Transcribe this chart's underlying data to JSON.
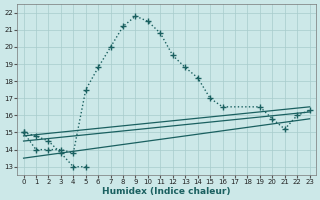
{
  "xlabel": "Humidex (Indice chaleur)",
  "bg_color": "#cce8e8",
  "line_color": "#1a6060",
  "grid_color": "#a8cccc",
  "xlim": [
    -0.5,
    23.5
  ],
  "ylim": [
    12.5,
    22.5
  ],
  "yticks": [
    13,
    14,
    15,
    16,
    17,
    18,
    19,
    20,
    21,
    22
  ],
  "xticks": [
    0,
    1,
    2,
    3,
    4,
    5,
    6,
    7,
    8,
    9,
    10,
    11,
    12,
    13,
    14,
    15,
    16,
    17,
    18,
    19,
    20,
    21,
    22,
    23
  ],
  "main_curve_x": [
    0,
    1,
    2,
    3,
    4,
    5,
    6,
    7,
    8,
    9,
    10,
    11,
    12,
    13,
    14,
    15,
    16,
    19,
    20,
    21,
    22,
    23
  ],
  "main_curve_y": [
    15.0,
    14.0,
    14.0,
    14.0,
    13.8,
    17.5,
    18.8,
    20.0,
    21.2,
    21.8,
    21.5,
    20.8,
    19.5,
    18.8,
    18.2,
    17.0,
    16.5,
    16.5,
    15.8,
    15.2,
    16.0,
    16.3
  ],
  "lower_curve_x": [
    0,
    1,
    2,
    3,
    4,
    5
  ],
  "lower_curve_y": [
    15.0,
    14.8,
    14.5,
    13.8,
    13.0,
    13.0
  ],
  "line1_x": [
    0,
    23
  ],
  "line1_y": [
    14.8,
    16.5
  ],
  "line2_x": [
    0,
    23
  ],
  "line2_y": [
    14.5,
    16.2
  ],
  "line3_x": [
    0,
    23
  ],
  "line3_y": [
    13.5,
    15.8
  ]
}
